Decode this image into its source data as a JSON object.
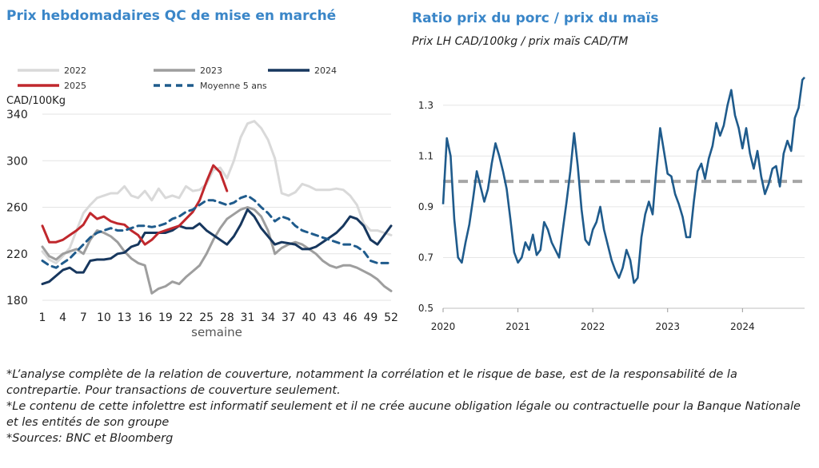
{
  "left": {
    "title": "Prix hebdomadaires QC de mise en marché"
  },
  "right": {
    "title": "Ratio prix du porc / prix du maïs",
    "subtitle": "Prix LH CAD/100kg / prix maïs CAD/TM"
  },
  "footnotes": [
    "*L’analyse complète de la relation de couverture, notamment la corrélation et le risque de base, est de la responsabilité de la contrepartie. Pour transactions de couverture seulement.",
    "*Le contenu de cette infolettre est informatif seulement et il ne crée aucune obligation légale ou contractuelle pour la Banque Nationale et les entités de son groupe",
    "*Sources: BNC et Bloomberg"
  ],
  "chart_data": [
    {
      "type": "line",
      "ylabel": "CAD/100Kg",
      "xlabel": "semaine",
      "ylim": [
        180,
        340
      ],
      "xlim": [
        1,
        52
      ],
      "yticks": [
        "180",
        "220",
        "260",
        "300",
        "340"
      ],
      "xticks": [
        "1",
        "4",
        "7",
        "10",
        "13",
        "16",
        "19",
        "22",
        "25",
        "28",
        "31",
        "34",
        "37",
        "40",
        "43",
        "46",
        "49",
        "52"
      ],
      "grid": "horizontal",
      "legend_position": "top",
      "series": [
        {
          "name": "2022",
          "color": "#d9d9d9",
          "dash": "solid",
          "width": 3,
          "x": [
            1,
            2,
            3,
            4,
            5,
            6,
            7,
            8,
            9,
            10,
            11,
            12,
            13,
            14,
            15,
            16,
            17,
            18,
            19,
            20,
            21,
            22,
            23,
            24,
            25,
            26,
            27,
            28,
            29,
            30,
            31,
            32,
            33,
            34,
            35,
            36,
            37,
            38,
            39,
            40,
            41,
            42,
            43,
            44,
            45,
            46,
            47,
            48,
            49,
            50,
            51,
            52
          ],
          "y": [
            222,
            215,
            212,
            218,
            225,
            240,
            255,
            262,
            268,
            270,
            272,
            272,
            278,
            270,
            268,
            274,
            266,
            276,
            268,
            270,
            268,
            278,
            274,
            275,
            280,
            292,
            294,
            285,
            300,
            320,
            332,
            334,
            328,
            318,
            302,
            272,
            270,
            273,
            280,
            278,
            275,
            275,
            275,
            276,
            275,
            270,
            262,
            246,
            240,
            240,
            238,
            236
          ]
        },
        {
          "name": "2023",
          "color": "#9e9e9e",
          "dash": "solid",
          "width": 3,
          "x": [
            1,
            2,
            3,
            4,
            5,
            6,
            7,
            8,
            9,
            10,
            11,
            12,
            13,
            14,
            15,
            16,
            17,
            18,
            19,
            20,
            21,
            22,
            23,
            24,
            25,
            26,
            27,
            28,
            29,
            30,
            31,
            32,
            33,
            34,
            35,
            36,
            37,
            38,
            39,
            40,
            41,
            42,
            43,
            44,
            45,
            46,
            47,
            48,
            49,
            50,
            51,
            52
          ],
          "y": [
            226,
            218,
            215,
            220,
            222,
            224,
            220,
            232,
            240,
            238,
            235,
            230,
            222,
            216,
            212,
            210,
            186,
            190,
            192,
            196,
            194,
            200,
            205,
            210,
            220,
            232,
            242,
            250,
            254,
            258,
            260,
            258,
            252,
            240,
            220,
            225,
            228,
            230,
            228,
            224,
            220,
            214,
            210,
            208,
            210,
            210,
            208,
            205,
            202,
            198,
            192,
            188
          ]
        },
        {
          "name": "2024",
          "color": "#17375e",
          "dash": "solid",
          "width": 3,
          "x": [
            1,
            2,
            3,
            4,
            5,
            6,
            7,
            8,
            9,
            10,
            11,
            12,
            13,
            14,
            15,
            16,
            17,
            18,
            19,
            20,
            21,
            22,
            23,
            24,
            25,
            26,
            27,
            28,
            29,
            30,
            31,
            32,
            33,
            34,
            35,
            36,
            37,
            38,
            39,
            40,
            41,
            42,
            43,
            44,
            45,
            46,
            47,
            48,
            49,
            50,
            51,
            52
          ],
          "y": [
            194,
            196,
            201,
            206,
            208,
            204,
            204,
            214,
            215,
            215,
            216,
            220,
            221,
            226,
            228,
            238,
            238,
            238,
            238,
            240,
            244,
            242,
            242,
            246,
            240,
            236,
            232,
            228,
            235,
            245,
            258,
            252,
            242,
            235,
            228,
            230,
            229,
            228,
            224,
            224,
            226,
            230,
            234,
            238,
            244,
            252,
            250,
            244,
            232,
            228,
            236,
            244
          ]
        },
        {
          "name": "2025",
          "color": "#c0282d",
          "dash": "solid",
          "width": 3,
          "x": [
            1,
            2,
            3,
            4,
            5,
            6,
            7,
            8,
            9,
            10,
            11,
            12,
            13,
            14,
            15,
            16,
            17,
            18,
            19,
            20,
            21,
            22,
            23,
            24,
            25,
            26,
            27,
            28
          ],
          "y": [
            244,
            230,
            230,
            232,
            236,
            240,
            245,
            255,
            250,
            252,
            248,
            246,
            245,
            240,
            236,
            228,
            232,
            238,
            240,
            242,
            244,
            250,
            256,
            266,
            282,
            296,
            290,
            274
          ]
        },
        {
          "name": "Moyenne 5 ans",
          "color": "#1f5b8c",
          "dash": "8,6",
          "width": 3,
          "x": [
            1,
            2,
            3,
            4,
            5,
            6,
            7,
            8,
            9,
            10,
            11,
            12,
            13,
            14,
            15,
            16,
            17,
            18,
            19,
            20,
            21,
            22,
            23,
            24,
            25,
            26,
            27,
            28,
            29,
            30,
            31,
            32,
            33,
            34,
            35,
            36,
            37,
            38,
            39,
            40,
            41,
            42,
            43,
            44,
            45,
            46,
            47,
            48,
            49,
            50,
            51,
            52
          ],
          "y": [
            214,
            210,
            208,
            212,
            216,
            222,
            228,
            234,
            238,
            240,
            242,
            240,
            240,
            242,
            244,
            244,
            243,
            244,
            246,
            250,
            252,
            256,
            258,
            262,
            266,
            266,
            264,
            262,
            264,
            268,
            270,
            266,
            260,
            255,
            248,
            252,
            250,
            244,
            240,
            238,
            236,
            234,
            232,
            230,
            228,
            228,
            226,
            222,
            214,
            212,
            212,
            212
          ]
        }
      ]
    },
    {
      "type": "line",
      "ylim": [
        0.5,
        1.4
      ],
      "yticks": [
        "0.5",
        "0.7",
        "0.9",
        "1.1",
        "1.3"
      ],
      "xticks": [
        "2020",
        "2021",
        "2022",
        "2023",
        "2024"
      ],
      "xlim": [
        2020.0,
        2024.83
      ],
      "grid": "horizontal",
      "reference_line": {
        "value": 1.0,
        "color": "#a6a6a6",
        "dash": "dashed"
      },
      "series": [
        {
          "color": "#1f5b8c",
          "x": [
            2020.0,
            2020.05,
            2020.1,
            2020.15,
            2020.2,
            2020.25,
            2020.3,
            2020.35,
            2020.4,
            2020.45,
            2020.5,
            2020.55,
            2020.6,
            2020.65,
            2020.7,
            2020.75,
            2020.8,
            2020.85,
            2020.9,
            2020.95,
            2021.0,
            2021.05,
            2021.1,
            2021.15,
            2021.2,
            2021.25,
            2021.3,
            2021.35,
            2021.4,
            2021.45,
            2021.5,
            2021.55,
            2021.6,
            2021.65,
            2021.7,
            2021.75,
            2021.8,
            2021.85,
            2021.9,
            2021.95,
            2022.0,
            2022.05,
            2022.1,
            2022.15,
            2022.2,
            2022.25,
            2022.3,
            2022.35,
            2022.4,
            2022.45,
            2022.5,
            2022.55,
            2022.6,
            2022.65,
            2022.7,
            2022.75,
            2022.8,
            2022.85,
            2022.9,
            2022.95,
            2023.0,
            2023.05,
            2023.1,
            2023.15,
            2023.2,
            2023.25,
            2023.3,
            2023.35,
            2023.4,
            2023.45,
            2023.5,
            2023.55,
            2023.6,
            2023.65,
            2023.7,
            2023.75,
            2023.8,
            2023.85,
            2023.9,
            2023.95,
            2024.0,
            2024.05,
            2024.1,
            2024.15,
            2024.2,
            2024.25,
            2024.3,
            2024.35,
            2024.4,
            2024.45,
            2024.5,
            2024.55,
            2024.6,
            2024.65,
            2024.7,
            2024.75,
            2024.8,
            2024.83
          ],
          "y": [
            0.91,
            1.17,
            1.1,
            0.85,
            0.7,
            0.68,
            0.76,
            0.83,
            0.93,
            1.04,
            0.98,
            0.92,
            0.97,
            1.07,
            1.15,
            1.1,
            1.04,
            0.97,
            0.85,
            0.72,
            0.68,
            0.7,
            0.76,
            0.73,
            0.79,
            0.71,
            0.73,
            0.84,
            0.81,
            0.76,
            0.73,
            0.7,
            0.81,
            0.92,
            1.04,
            1.19,
            1.06,
            0.89,
            0.77,
            0.75,
            0.81,
            0.84,
            0.9,
            0.81,
            0.75,
            0.69,
            0.65,
            0.62,
            0.66,
            0.73,
            0.69,
            0.6,
            0.62,
            0.78,
            0.87,
            0.92,
            0.87,
            1.05,
            1.21,
            1.12,
            1.03,
            1.02,
            0.95,
            0.91,
            0.86,
            0.78,
            0.78,
            0.92,
            1.04,
            1.07,
            1.01,
            1.09,
            1.14,
            1.23,
            1.18,
            1.22,
            1.3,
            1.36,
            1.26,
            1.21,
            1.13,
            1.21,
            1.11,
            1.05,
            1.12,
            1.02,
            0.95,
            0.99,
            1.05,
            1.06,
            0.98,
            1.11,
            1.16,
            1.12,
            1.25,
            1.29,
            1.4,
            1.41
          ]
        }
      ]
    }
  ]
}
